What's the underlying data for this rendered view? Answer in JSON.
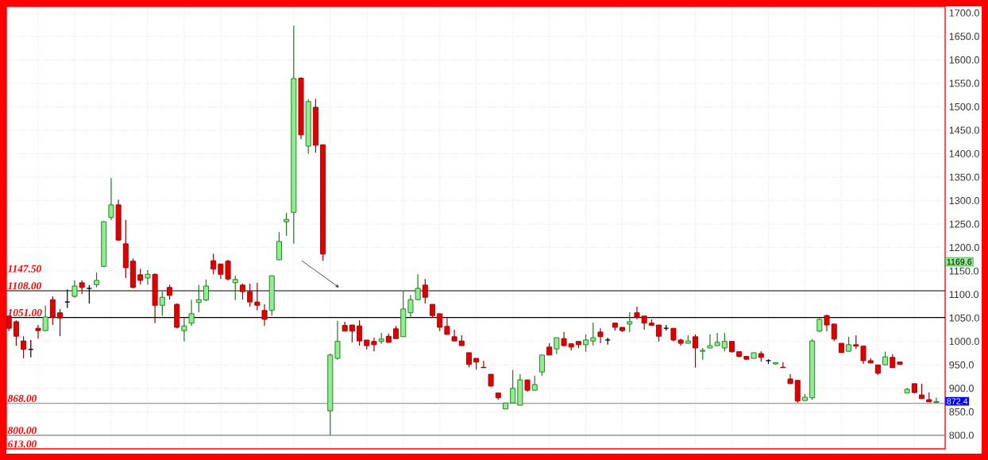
{
  "chart_data": {
    "type": "candlestick",
    "categories": [
      null,
      null,
      null,
      null,
      null,
      null,
      null,
      null,
      null,
      null,
      null,
      null,
      null,
      null,
      null,
      null,
      null,
      null,
      null,
      null,
      null,
      null,
      null,
      null,
      null,
      null,
      null,
      null,
      null,
      null,
      null,
      null,
      null,
      null,
      null,
      null,
      null,
      null,
      null,
      null,
      null,
      null,
      null,
      null,
      null,
      null,
      null,
      null,
      null,
      null,
      null,
      null,
      null,
      null,
      null,
      null,
      null,
      null,
      null,
      null,
      null,
      null,
      null,
      null,
      null,
      null,
      null,
      null,
      null,
      null,
      null,
      null,
      null,
      null,
      null,
      null,
      null,
      null,
      null,
      null,
      null,
      null,
      null,
      null,
      null,
      null,
      null,
      null,
      null,
      null,
      null,
      null,
      null,
      null,
      null,
      null,
      null,
      null,
      null,
      null,
      null,
      null,
      null,
      null,
      null,
      null,
      null,
      null,
      null,
      null,
      null,
      null,
      null,
      null,
      null,
      null,
      null,
      null,
      null,
      null,
      null,
      null,
      null,
      null,
      null,
      null,
      null,
      null
    ],
    "ohlc": [
      [
        1054,
        1054,
        1022,
        1028
      ],
      [
        1042,
        1045,
        991,
        1011
      ],
      [
        1001,
        1011,
        964,
        983
      ],
      [
        983,
        1003,
        966,
        983
      ],
      [
        1028,
        1035,
        1006,
        1023
      ],
      [
        1023,
        1076,
        1022,
        1052
      ],
      [
        1089,
        1096,
        1035,
        1052
      ],
      [
        1061,
        1069,
        1011,
        1050
      ],
      [
        1084,
        1111,
        1071,
        1084
      ],
      [
        1096,
        1130,
        1093,
        1118
      ],
      [
        1125,
        1130,
        1101,
        1115
      ],
      [
        1113,
        1120,
        1081,
        1113
      ],
      [
        1121,
        1147,
        1115,
        1130
      ],
      [
        1160,
        1256,
        1158,
        1255
      ],
      [
        1264,
        1348,
        1259,
        1291
      ],
      [
        1291,
        1302,
        1214,
        1216
      ],
      [
        1208,
        1259,
        1135,
        1157
      ],
      [
        1171,
        1177,
        1113,
        1115
      ],
      [
        1142,
        1155,
        1121,
        1130
      ],
      [
        1135,
        1152,
        1121,
        1143
      ],
      [
        1143,
        1145,
        1039,
        1077
      ],
      [
        1077,
        1106,
        1055,
        1094
      ],
      [
        1115,
        1121,
        1089,
        1098
      ],
      [
        1079,
        1081,
        1028,
        1030
      ],
      [
        1023,
        1050,
        1000,
        1033
      ],
      [
        1039,
        1089,
        1033,
        1059
      ],
      [
        1083,
        1120,
        1062,
        1089
      ],
      [
        1088,
        1132,
        1086,
        1118
      ],
      [
        1172,
        1187,
        1143,
        1154
      ],
      [
        1165,
        1165,
        1133,
        1143
      ],
      [
        1171,
        1174,
        1130,
        1133
      ],
      [
        1125,
        1140,
        1088,
        1132
      ],
      [
        1120,
        1123,
        1089,
        1106
      ],
      [
        1106,
        1123,
        1074,
        1084
      ],
      [
        1084,
        1125,
        1066,
        1077
      ],
      [
        1066,
        1079,
        1033,
        1047
      ],
      [
        1066,
        1140,
        1055,
        1140
      ],
      [
        1174,
        1233,
        1174,
        1213
      ],
      [
        1255,
        1274,
        1225,
        1260
      ],
      [
        1275,
        1673,
        1208,
        1560
      ],
      [
        1561,
        1563,
        1431,
        1440
      ],
      [
        1416,
        1516,
        1400,
        1511
      ],
      [
        1499,
        1517,
        1402,
        1418
      ],
      [
        1419,
        1420,
        1172,
        1186
      ],
      [
        852,
        974,
        800,
        971
      ],
      [
        964,
        1044,
        961,
        1000
      ],
      [
        1034,
        1042,
        1022,
        1022
      ],
      [
        1035,
        1035,
        998,
        1022
      ],
      [
        1033,
        1045,
        991,
        1001
      ],
      [
        1003,
        1003,
        983,
        991
      ],
      [
        1000,
        1008,
        979,
        993
      ],
      [
        1000,
        1018,
        995,
        1005
      ],
      [
        1011,
        1017,
        998,
        998
      ],
      [
        1027,
        1033,
        1006,
        1006
      ],
      [
        1010,
        1108,
        1010,
        1069
      ],
      [
        1061,
        1099,
        1050,
        1089
      ],
      [
        1089,
        1143,
        1089,
        1113
      ],
      [
        1120,
        1133,
        1081,
        1094
      ],
      [
        1079,
        1079,
        1052,
        1055
      ],
      [
        1059,
        1059,
        1022,
        1030
      ],
      [
        1032,
        1050,
        1015,
        1015
      ],
      [
        1010,
        1025,
        1001,
        1001
      ],
      [
        1001,
        1013,
        991,
        991
      ],
      [
        976,
        976,
        945,
        951
      ],
      [
        964,
        964,
        940,
        956
      ],
      [
        945,
        959,
        944,
        944
      ],
      [
        930,
        930,
        903,
        905
      ],
      [
        890,
        890,
        876,
        880
      ],
      [
        856,
        869,
        856,
        869
      ],
      [
        869,
        939,
        869,
        900
      ],
      [
        864,
        930,
        864,
        918
      ],
      [
        918,
        918,
        893,
        896
      ],
      [
        896,
        927,
        896,
        908
      ],
      [
        935,
        971,
        927,
        971
      ],
      [
        988,
        996,
        971,
        971
      ],
      [
        984,
        1008,
        973,
        1008
      ],
      [
        1006,
        1020,
        989,
        991
      ],
      [
        995,
        995,
        981,
        988
      ],
      [
        1000,
        1000,
        986,
        993
      ],
      [
        993,
        1015,
        978,
        1003
      ],
      [
        1001,
        1040,
        991,
        1008
      ],
      [
        1020,
        1028,
        996,
        1010
      ],
      [
        1003,
        1008,
        993,
        1003
      ],
      [
        1039,
        1039,
        1023,
        1030
      ],
      [
        1030,
        1030,
        1020,
        1023
      ],
      [
        1037,
        1062,
        1020,
        1042
      ],
      [
        1061,
        1074,
        1047,
        1052
      ],
      [
        1054,
        1054,
        1025,
        1039
      ],
      [
        1039,
        1047,
        1034,
        1034
      ],
      [
        1035,
        1035,
        1000,
        1011
      ],
      [
        1028,
        1035,
        1023,
        1028
      ],
      [
        1028,
        1028,
        1000,
        1003
      ],
      [
        1003,
        1006,
        991,
        996
      ],
      [
        996,
        1013,
        996,
        1001
      ],
      [
        1010,
        1015,
        944,
        986
      ],
      [
        979,
        986,
        961,
        981
      ],
      [
        986,
        1015,
        986,
        991
      ],
      [
        991,
        1018,
        991,
        998
      ],
      [
        986,
        1018,
        979,
        1000
      ],
      [
        1000,
        1000,
        976,
        978
      ],
      [
        978,
        978,
        966,
        968
      ],
      [
        968,
        968,
        961,
        962
      ],
      [
        964,
        976,
        964,
        976
      ],
      [
        974,
        979,
        957,
        966
      ],
      [
        959,
        962,
        952,
        959
      ],
      [
        952,
        955,
        950,
        955
      ],
      [
        945,
        956,
        944,
        944
      ],
      [
        920,
        930,
        910,
        910
      ],
      [
        917,
        917,
        869,
        873
      ],
      [
        874,
        888,
        874,
        881
      ],
      [
        880,
        1005,
        876,
        1001
      ],
      [
        1022,
        1050,
        1020,
        1047
      ],
      [
        1055,
        1057,
        1022,
        1035
      ],
      [
        1037,
        1037,
        1001,
        1005
      ],
      [
        996,
        996,
        976,
        976
      ],
      [
        979,
        1010,
        979,
        993
      ],
      [
        993,
        1013,
        984,
        990
      ],
      [
        990,
        990,
        952,
        959
      ],
      [
        959,
        964,
        954,
        954
      ],
      [
        950,
        950,
        928,
        932
      ],
      [
        950,
        978,
        950,
        967
      ],
      [
        966,
        973,
        944,
        944
      ],
      [
        956,
        957,
        951,
        951
      ],
      [
        890,
        901,
        890,
        898
      ],
      [
        910,
        910,
        889,
        891
      ],
      [
        886,
        910,
        878,
        878
      ],
      [
        876,
        891,
        871,
        871
      ],
      [
        870,
        880,
        870,
        872
      ]
    ],
    "ylim": [
      771,
      1714
    ],
    "yticks": [
      {
        "value": 800,
        "label": "800.0"
      },
      {
        "value": 850,
        "label": "850.0"
      },
      {
        "value": 900,
        "label": "900.0"
      },
      {
        "value": 950,
        "label": "950.0"
      },
      {
        "value": 1000,
        "label": "1000.0"
      },
      {
        "value": 1050,
        "label": "1050.0"
      },
      {
        "value": 1100,
        "label": "1100.0"
      },
      {
        "value": 1150,
        "label": "1150.0"
      },
      {
        "value": 1200,
        "label": "1200.0"
      },
      {
        "value": 1250,
        "label": "1250.0"
      },
      {
        "value": 1300,
        "label": "1300.0"
      },
      {
        "value": 1350,
        "label": "1350.0"
      },
      {
        "value": 1400,
        "label": "1400.0"
      },
      {
        "value": 1450,
        "label": "1450.0"
      },
      {
        "value": 1500,
        "label": "1500.0"
      },
      {
        "value": 1550,
        "label": "1550.0"
      },
      {
        "value": 1600,
        "label": "1600.0"
      },
      {
        "value": 1650,
        "label": "1650.0"
      },
      {
        "value": 1700,
        "label": "1700.0"
      }
    ],
    "ref_lines": [
      {
        "axis": "y",
        "value": 1108,
        "label": "1108.00",
        "color": "#000000"
      },
      {
        "axis": "y",
        "value": 1051,
        "label": "1051.00",
        "color": "#000000"
      },
      {
        "axis": "y",
        "value": 868,
        "label": "868.00",
        "color": "#808080"
      },
      {
        "axis": "y",
        "value": 800,
        "label": "800.00",
        "color": "#808080"
      }
    ],
    "annotations": [
      "1147.50",
      "613.00",
      {
        "text": "1169.6",
        "y": 1169.6
      },
      {
        "text": "872.4",
        "y": 872.4
      }
    ],
    "grid": true,
    "tick_labels": "y"
  }
}
